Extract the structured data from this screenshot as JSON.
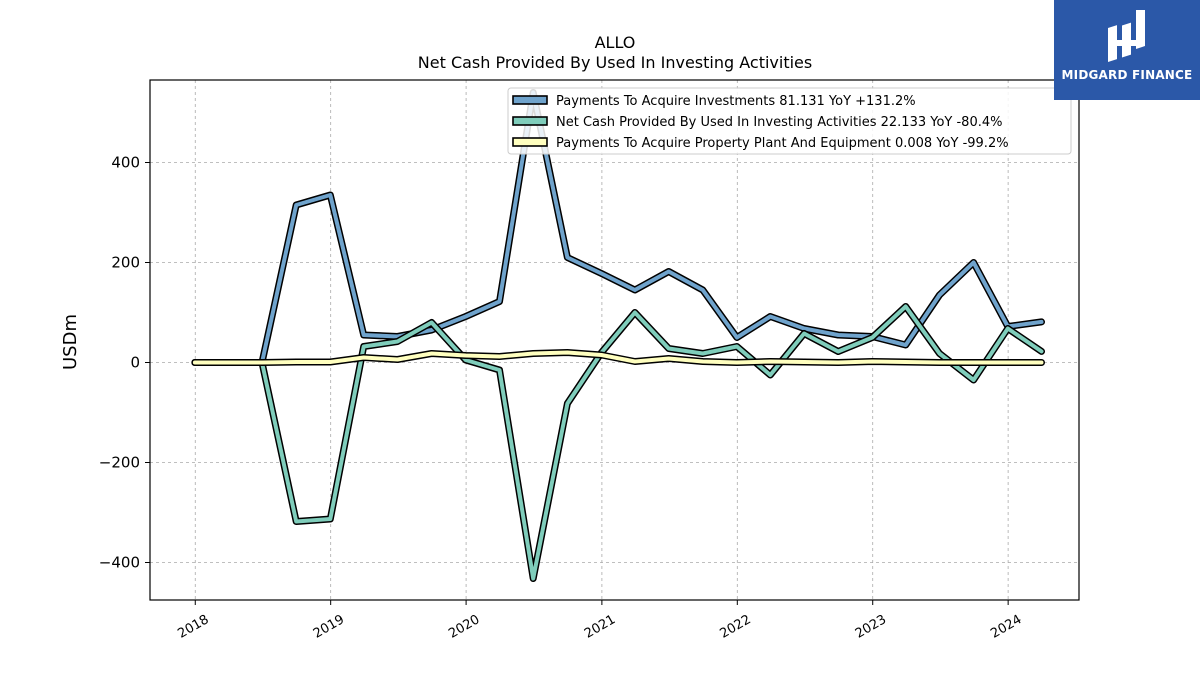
{
  "chart_data": {
    "type": "line",
    "title": "ALLO",
    "subtitle": "Net Cash Provided By Used In Investing Activities",
    "ylabel": "USDm",
    "xlabel": "",
    "ylim": [
      -475,
      565
    ],
    "yticks": [
      -400,
      -200,
      0,
      200,
      400
    ],
    "ytick_labels": [
      "−400",
      "−200",
      "0",
      "200",
      "400"
    ],
    "xlim": [
      "2017-09-01",
      "2024-07-10"
    ],
    "xticks": [
      "2018-01-01",
      "2019-01-01",
      "2020-01-01",
      "2021-01-01",
      "2022-01-01",
      "2023-01-01",
      "2024-01-01"
    ],
    "xtick_labels": [
      "2018",
      "2019",
      "2020",
      "2021",
      "2022",
      "2023",
      "2024"
    ],
    "grid": true,
    "legend_position": "top-right",
    "x": [
      "2017-12-31",
      "2018-03-31",
      "2018-06-30",
      "2018-09-30",
      "2018-12-31",
      "2019-03-31",
      "2019-06-30",
      "2019-09-30",
      "2019-12-31",
      "2020-03-31",
      "2020-06-30",
      "2020-09-30",
      "2020-12-31",
      "2021-03-31",
      "2021-06-30",
      "2021-09-30",
      "2021-12-31",
      "2022-03-31",
      "2022-06-30",
      "2022-09-30",
      "2022-12-31",
      "2023-03-31",
      "2023-06-30",
      "2023-09-30",
      "2023-12-31",
      "2024-03-31"
    ],
    "series": [
      {
        "name": "Payments To Acquire Investments",
        "legend_label": "Payments To Acquire Investments  81.131 YoY +131.2%",
        "color": "#6fa3cc",
        "values": [
          0,
          0,
          0,
          315,
          335,
          55,
          52,
          65,
          92,
          122,
          540,
          210,
          178,
          145,
          182,
          145,
          50,
          92,
          68,
          55,
          52,
          35,
          135,
          200,
          72,
          81.131
        ]
      },
      {
        "name": "Net Cash Provided By Used In Investing Activities",
        "legend_label": "Net Cash Provided By Used In Investing Activities  22.133 YoY -80.4%",
        "color": "#7fcdbb",
        "values": [
          0,
          0,
          0,
          -318,
          -313,
          32,
          42,
          80,
          5,
          -15,
          -432,
          -82,
          20,
          100,
          28,
          18,
          32,
          -25,
          58,
          22,
          50,
          112,
          18,
          -35,
          68,
          22.133
        ]
      },
      {
        "name": "Payments To Acquire Property Plant And Equipment",
        "legend_label": "Payments To Acquire Property Plant And Equipment  0.008 YoY -99.2%",
        "color": "#ffffbf",
        "values": [
          0,
          0,
          0,
          1,
          1,
          10,
          6,
          18,
          14,
          12,
          18,
          20,
          15,
          2,
          8,
          2,
          0,
          2,
          1,
          0,
          2,
          1,
          0,
          0,
          0,
          0.008
        ]
      }
    ]
  },
  "logo": {
    "text": "MIDGARD FINANCE",
    "bg_color": "#2b58a8"
  }
}
